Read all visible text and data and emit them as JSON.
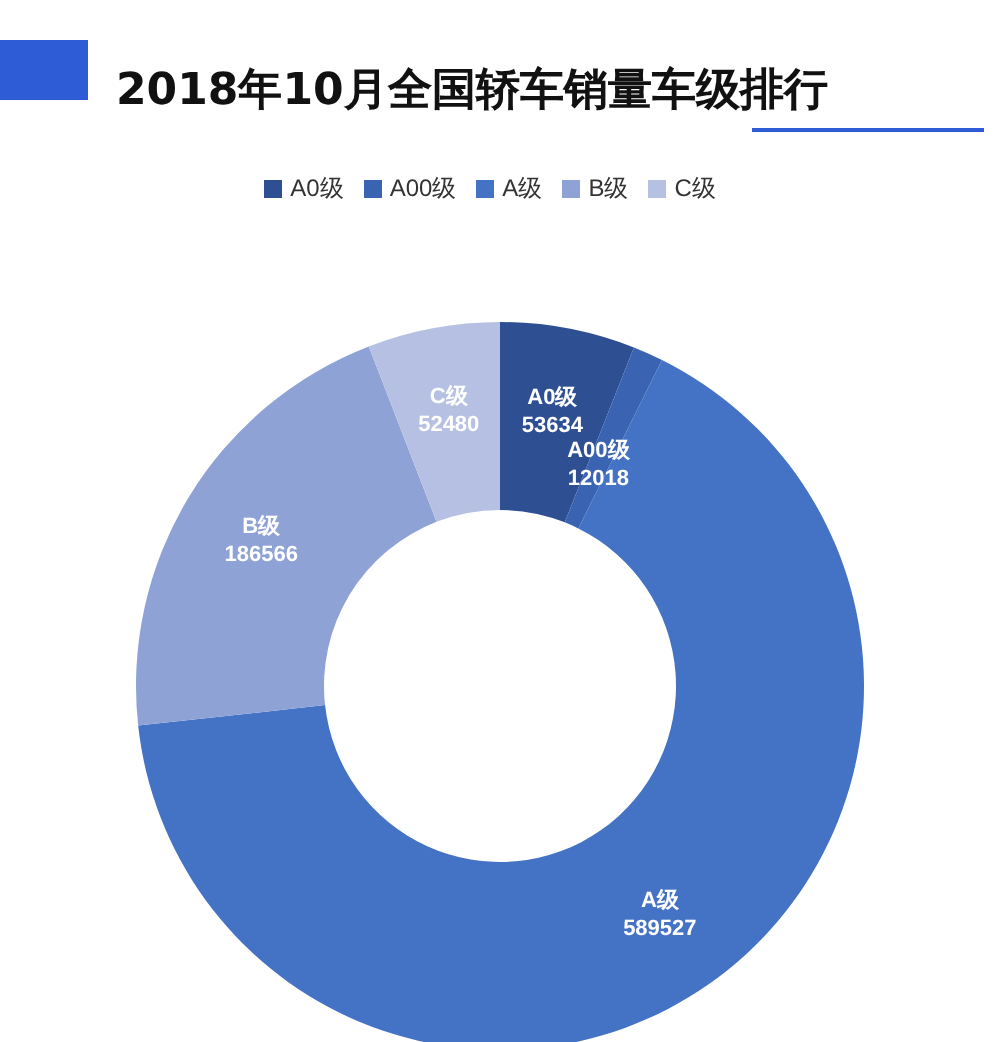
{
  "chart_data": {
    "type": "donut",
    "title": "2018年10月全国轿车销量车级排行",
    "categories": [
      "A0级",
      "A00级",
      "A级",
      "B级",
      "C级"
    ],
    "values": [
      53634,
      12018,
      589527,
      186566,
      52480
    ],
    "colors": [
      "#2e4f92",
      "#3a63b2",
      "#4472c4",
      "#8fa2d6",
      "#b6c0e2"
    ],
    "data_labels": true,
    "legend": "top"
  }
}
